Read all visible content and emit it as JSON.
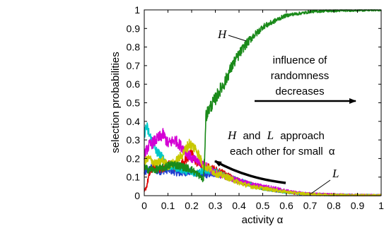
{
  "chart_data": {
    "type": "line",
    "xlabel": "activity α",
    "ylabel": "selection probabilities",
    "xlim": [
      0,
      1
    ],
    "ylim": [
      0,
      1
    ],
    "x_ticks": [
      0,
      0.1,
      0.2,
      0.3,
      0.4,
      0.5,
      0.6,
      0.7,
      0.8,
      0.9,
      1
    ],
    "x_tick_labels": [
      "0",
      "0.1",
      "0.2",
      "0.3",
      "0.4",
      "0.5",
      "0.6",
      "0.7",
      "0.8",
      "0.9",
      "1"
    ],
    "y_ticks": [
      0,
      0.1,
      0.2,
      0.3,
      0.4,
      0.5,
      0.6,
      0.7,
      0.8,
      0.9,
      1
    ],
    "y_tick_labels": [
      "0",
      "0.1",
      "0.2",
      "0.3",
      "0.4",
      "0.5",
      "0.6",
      "0.7",
      "0.8",
      "0.9",
      "1"
    ],
    "grid": false,
    "legend": "none",
    "series": [
      {
        "name": "H",
        "color": "#1a8a1a",
        "x": [
          0,
          0.02,
          0.05,
          0.08,
          0.1,
          0.12,
          0.15,
          0.18,
          0.2,
          0.22,
          0.24,
          0.25,
          0.255,
          0.26,
          0.28,
          0.3,
          0.32,
          0.34,
          0.36,
          0.38,
          0.4,
          0.42,
          0.44,
          0.46,
          0.48,
          0.5,
          0.52,
          0.55,
          0.58,
          0.6,
          0.62,
          0.65,
          0.68,
          0.7,
          0.73,
          0.76,
          0.8,
          0.85,
          0.9,
          0.95,
          1
        ],
        "y": [
          0.15,
          0.14,
          0.14,
          0.15,
          0.16,
          0.17,
          0.16,
          0.15,
          0.14,
          0.12,
          0.1,
          0.08,
          0.22,
          0.43,
          0.48,
          0.52,
          0.57,
          0.61,
          0.67,
          0.72,
          0.76,
          0.8,
          0.83,
          0.86,
          0.88,
          0.91,
          0.92,
          0.94,
          0.96,
          0.97,
          0.975,
          0.98,
          0.985,
          0.99,
          0.992,
          0.994,
          0.995,
          0.997,
          0.998,
          0.999,
          1.0
        ]
      },
      {
        "name": "",
        "color": "#d400d4",
        "x": [
          0,
          0.02,
          0.05,
          0.08,
          0.1,
          0.13,
          0.16,
          0.2,
          0.25,
          0.3,
          0.35,
          0.4,
          0.45,
          0.5,
          0.55,
          0.6,
          0.65,
          0.7,
          0.8,
          0.9,
          1
        ],
        "y": [
          0.22,
          0.27,
          0.3,
          0.33,
          0.28,
          0.3,
          0.26,
          0.2,
          0.17,
          0.12,
          0.1,
          0.08,
          0.06,
          0.05,
          0.04,
          0.025,
          0.015,
          0.01,
          0.005,
          0.002,
          0.001
        ]
      },
      {
        "name": "",
        "color": "#00c8c8",
        "x": [
          0,
          0.01,
          0.03,
          0.05,
          0.08,
          0.1,
          0.14,
          0.18,
          0.22,
          0.25,
          0.3,
          0.35,
          0.4,
          0.45,
          0.5,
          0.55,
          0.6,
          0.65,
          0.7,
          0.8,
          0.9,
          1
        ],
        "y": [
          0.34,
          0.37,
          0.3,
          0.24,
          0.2,
          0.16,
          0.15,
          0.13,
          0.12,
          0.14,
          0.13,
          0.1,
          0.08,
          0.06,
          0.04,
          0.03,
          0.02,
          0.012,
          0.008,
          0.004,
          0.002,
          0.001
        ]
      },
      {
        "name": "",
        "color": "#e00000",
        "x": [
          0,
          0.01,
          0.02,
          0.04,
          0.07,
          0.1,
          0.14,
          0.18,
          0.2,
          0.22,
          0.25,
          0.3,
          0.35,
          0.4,
          0.45,
          0.5,
          0.55,
          0.6,
          0.65,
          0.7,
          0.8,
          0.9,
          1
        ],
        "y": [
          0.02,
          0.05,
          0.11,
          0.16,
          0.14,
          0.17,
          0.15,
          0.2,
          0.23,
          0.18,
          0.16,
          0.14,
          0.11,
          0.08,
          0.06,
          0.04,
          0.03,
          0.02,
          0.012,
          0.008,
          0.004,
          0.002,
          0.001
        ]
      },
      {
        "name": "",
        "color": "#2040d0",
        "x": [
          0,
          0.03,
          0.06,
          0.1,
          0.15,
          0.2,
          0.25,
          0.3,
          0.35,
          0.4,
          0.45,
          0.5,
          0.55,
          0.6,
          0.65,
          0.7,
          0.8,
          0.9,
          1
        ],
        "y": [
          0.12,
          0.15,
          0.13,
          0.14,
          0.12,
          0.13,
          0.11,
          0.12,
          0.1,
          0.08,
          0.06,
          0.04,
          0.03,
          0.02,
          0.012,
          0.008,
          0.004,
          0.002,
          0.001
        ]
      },
      {
        "name": "L",
        "color": "#c8c800",
        "x": [
          0,
          0.02,
          0.05,
          0.08,
          0.1,
          0.13,
          0.16,
          0.19,
          0.22,
          0.25,
          0.28,
          0.3,
          0.35,
          0.4,
          0.45,
          0.5,
          0.55,
          0.6,
          0.65,
          0.7,
          0.8,
          0.9,
          1
        ],
        "y": [
          0.18,
          0.2,
          0.17,
          0.19,
          0.16,
          0.18,
          0.22,
          0.28,
          0.25,
          0.16,
          0.14,
          0.12,
          0.1,
          0.07,
          0.05,
          0.04,
          0.03,
          0.02,
          0.013,
          0.008,
          0.004,
          0.002,
          0.001
        ]
      }
    ],
    "annotations": {
      "H_label": "H",
      "L_label": "L",
      "influence_line1": "influence of",
      "influence_line2": "randomness",
      "influence_line3": "decreases",
      "approach_H": "H",
      "approach_and": "and",
      "approach_L": "L",
      "approach_word": "approach",
      "approach_line2": "each other for small",
      "approach_alpha": "α"
    }
  }
}
